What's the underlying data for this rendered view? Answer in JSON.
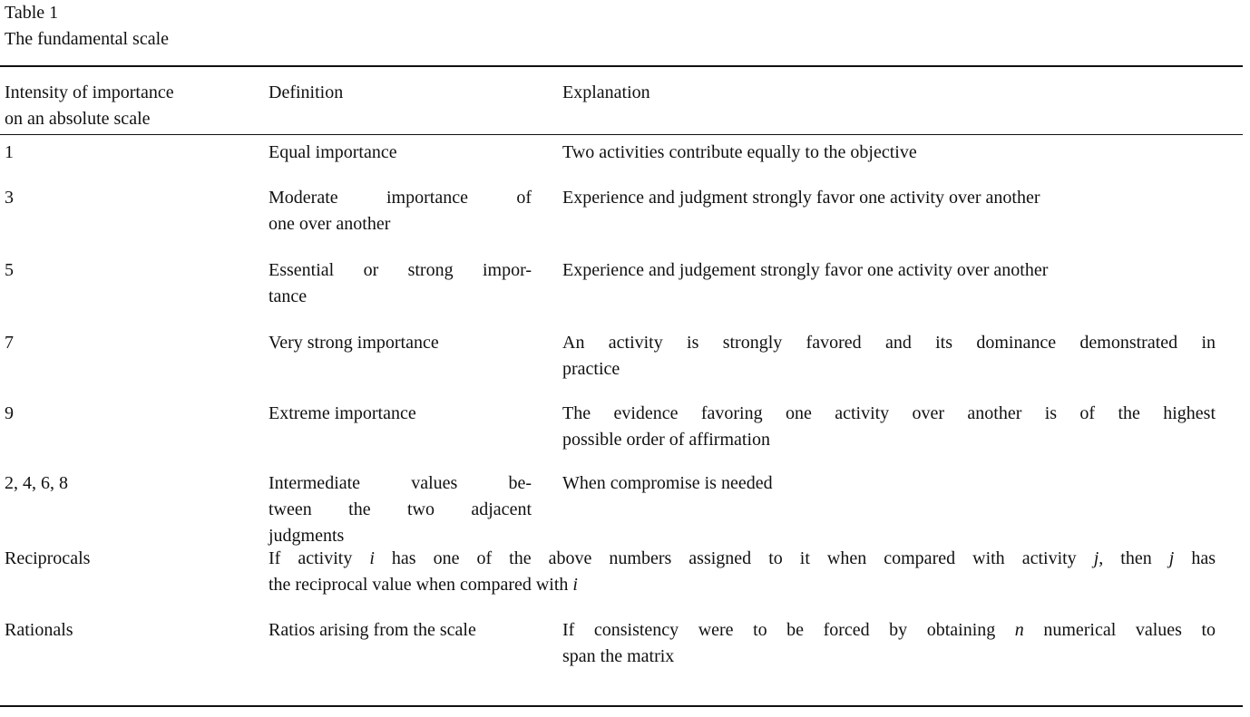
{
  "caption": {
    "label": "Table 1",
    "title": "The fundamental scale"
  },
  "headers": {
    "intensity_line1": "Intensity of importance",
    "intensity_line2": "on an absolute scale",
    "definition": "Definition",
    "explanation": "Explanation"
  },
  "rows": [
    {
      "intensity": "1",
      "definition": [
        "Equal importance"
      ],
      "explanation": [
        "Two activities contribute equally to the objective"
      ]
    },
    {
      "intensity": "3",
      "definition": [
        "Moderate importance of",
        "one over another"
      ],
      "explanation": [
        "Experience and judgment strongly favor one activity over another"
      ]
    },
    {
      "intensity": "5",
      "definition": [
        "Essential or strong impor-",
        "tance"
      ],
      "explanation": [
        "Experience and judgement strongly favor one activity over another"
      ]
    },
    {
      "intensity": "7",
      "definition": [
        "Very strong importance"
      ],
      "explanation": [
        "An activity is strongly favored and its dominance demonstrated in",
        "practice"
      ]
    },
    {
      "intensity": "9",
      "definition": [
        "Extreme importance"
      ],
      "explanation": [
        "The evidence favoring one activity over another is of the highest",
        "possible order of affirmation"
      ]
    },
    {
      "intensity": "2, 4, 6, 8",
      "definition": [
        "Intermediate values be-",
        "tween the two adjacent",
        "judgments"
      ],
      "explanation": [
        "When compromise is needed"
      ]
    },
    {
      "intensity": "Reciprocals",
      "spanning": {
        "l1_a": "If activity ",
        "l1_i": "i",
        "l1_b": " has one of the above numbers assigned to it when compared with activity ",
        "l1_j1": "j",
        "l1_c": ", then ",
        "l1_j2": "j",
        "l1_d": " has",
        "l2_a": "the reciprocal value when compared with ",
        "l2_i": "i"
      }
    },
    {
      "intensity": "Rationals",
      "definition": [
        "Ratios arising from the scale"
      ],
      "explanation_parts": {
        "l1_a": "If consistency were to be forced by obtaining ",
        "l1_n": "n",
        "l1_b": " numerical values to",
        "l2": "span the matrix"
      }
    }
  ]
}
